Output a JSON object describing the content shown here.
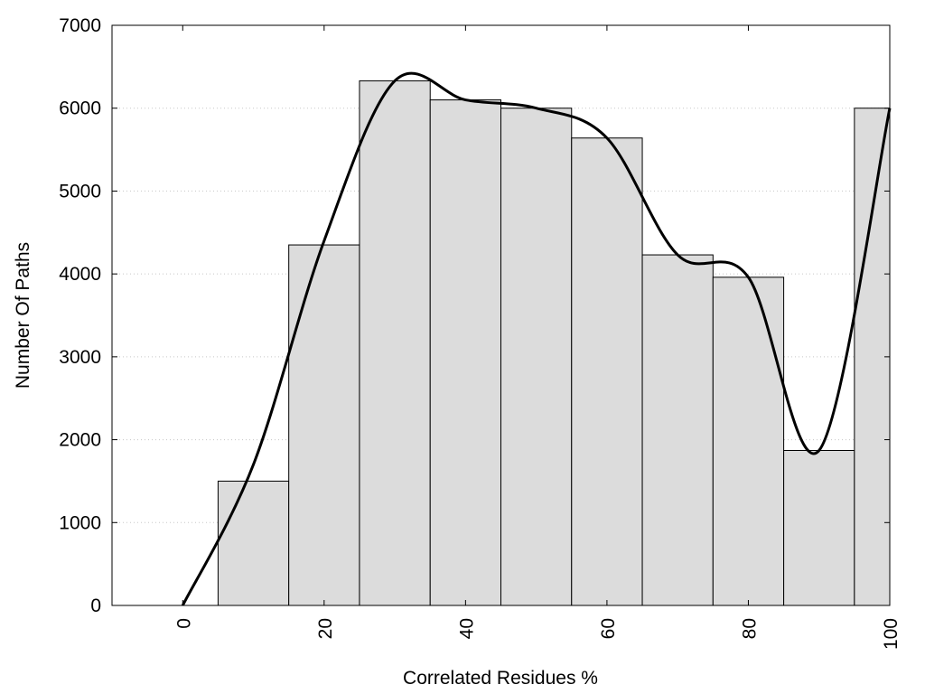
{
  "chart_data": {
    "type": "bar",
    "title": "",
    "xlabel": "Correlated Residues %",
    "ylabel": "Number Of Paths",
    "xlim": [
      -10,
      100
    ],
    "ylim": [
      0,
      7000
    ],
    "grid": true,
    "bin_width": 10,
    "bars": [
      {
        "x": 10,
        "value": 1500
      },
      {
        "x": 20,
        "value": 4350
      },
      {
        "x": 30,
        "value": 6330
      },
      {
        "x": 40,
        "value": 6100
      },
      {
        "x": 50,
        "value": 6000
      },
      {
        "x": 60,
        "value": 5640
      },
      {
        "x": 70,
        "value": 4230
      },
      {
        "x": 80,
        "value": 3960
      },
      {
        "x": 90,
        "value": 1870
      },
      {
        "x": 100,
        "value": 6000
      }
    ],
    "curve": {
      "type": "line",
      "x": [
        0,
        10,
        20,
        30,
        40,
        50,
        60,
        70,
        80,
        90,
        100
      ],
      "y": [
        0,
        1700,
        4400,
        6330,
        6100,
        6000,
        5640,
        4230,
        3960,
        1870,
        6000
      ]
    },
    "x_ticks": [
      "0",
      "20",
      "40",
      "60",
      "80",
      "100"
    ],
    "y_ticks": [
      "0",
      "1000",
      "2000",
      "3000",
      "4000",
      "5000",
      "6000",
      "7000"
    ],
    "colors": {
      "bar_fill": "#dcdcdc",
      "bar_stroke": "#000000",
      "curve": "#000000",
      "grid": "#c8c8c8"
    }
  }
}
